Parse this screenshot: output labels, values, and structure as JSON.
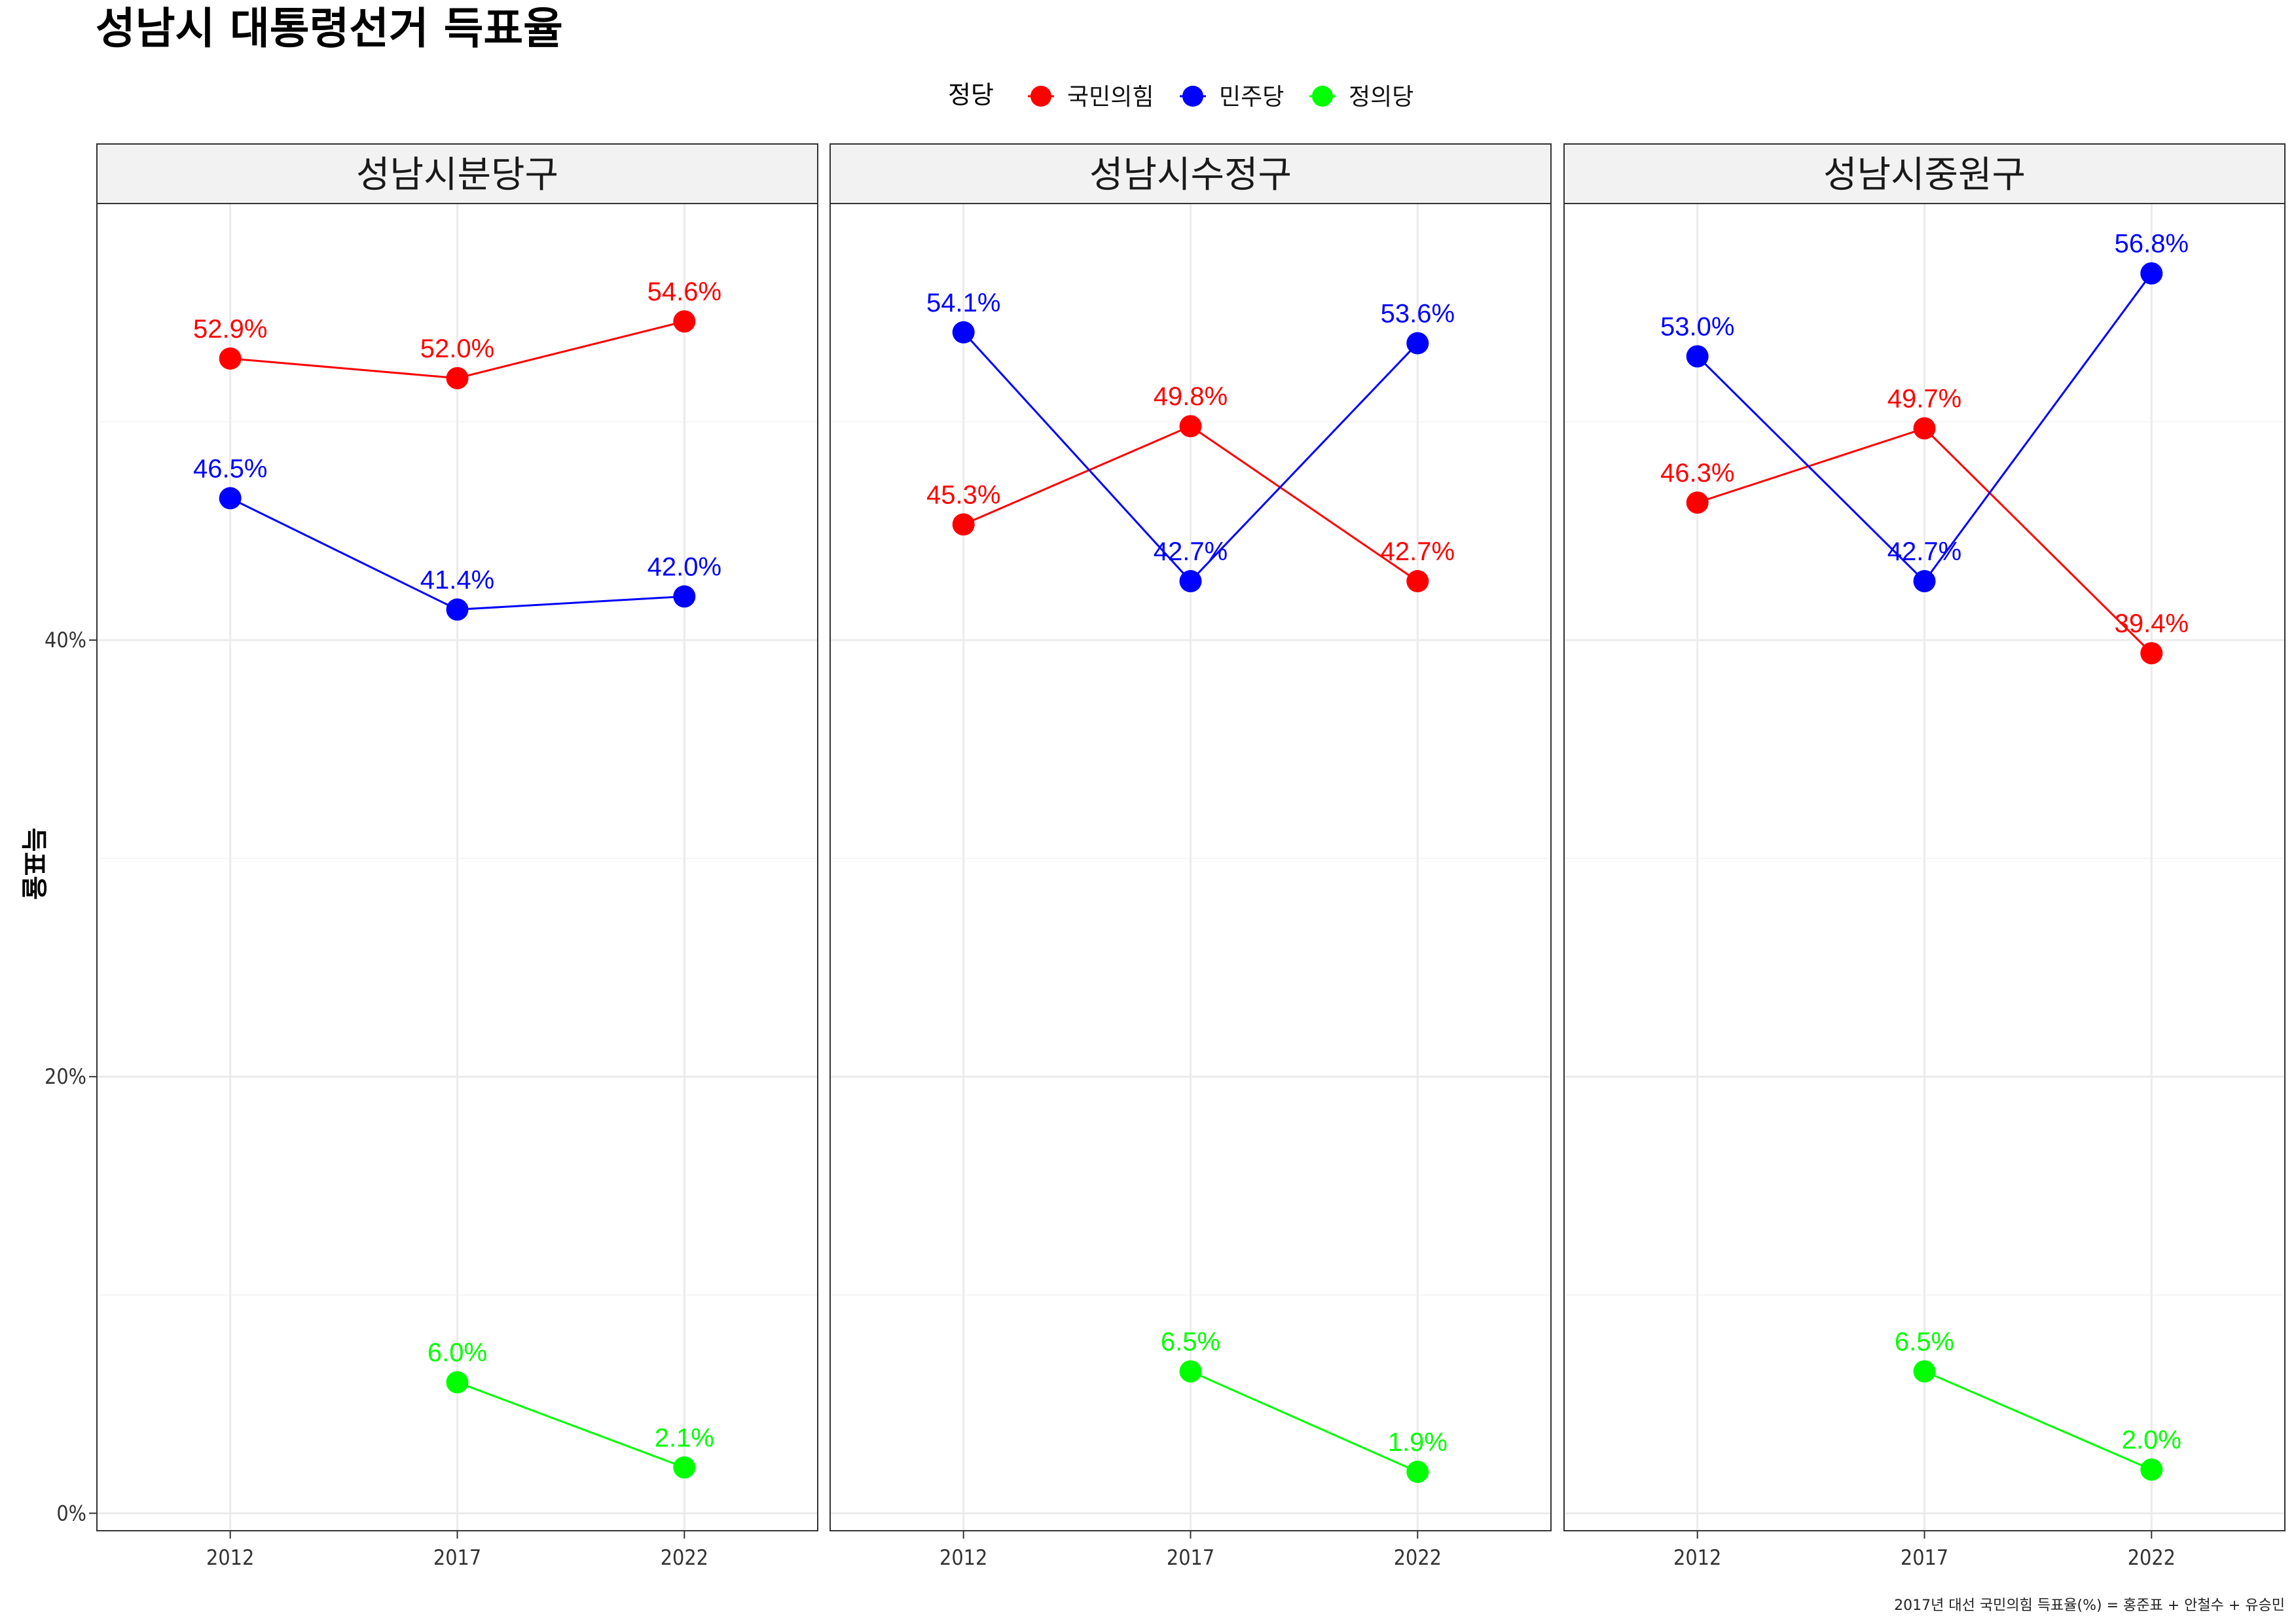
{
  "chart_data": {
    "type": "line",
    "title": "성남시 대통령선거 득표율",
    "ylabel": "득표율",
    "xlabel": "",
    "x": [
      "2012",
      "2017",
      "2022"
    ],
    "ylim": [
      -0.8,
      60
    ],
    "yticks": [
      0,
      20,
      40
    ],
    "ytick_labels": [
      "0%",
      "20%",
      "40%"
    ],
    "grid": true,
    "legend": {
      "title": "정당",
      "position": "top",
      "entries": [
        {
          "name": "국민의힘",
          "color": "#FF0000"
        },
        {
          "name": "민주당",
          "color": "#0000FF"
        },
        {
          "name": "정의당",
          "color": "#00FF00"
        }
      ]
    },
    "facets": [
      {
        "name": "성남시분당구",
        "series": [
          {
            "name": "국민의힘",
            "color": "#FF0000",
            "values": [
              52.9,
              52.0,
              54.6
            ],
            "labels": [
              "52.9%",
              "52.0%",
              "54.6%"
            ]
          },
          {
            "name": "민주당",
            "color": "#0000FF",
            "values": [
              46.5,
              41.4,
              42.0
            ],
            "labels": [
              "46.5%",
              "41.4%",
              "42.0%"
            ]
          },
          {
            "name": "정의당",
            "color": "#00FF00",
            "values": [
              null,
              6.0,
              2.1
            ],
            "labels": [
              null,
              "6.0%",
              "2.1%"
            ]
          }
        ]
      },
      {
        "name": "성남시수정구",
        "series": [
          {
            "name": "국민의힘",
            "color": "#FF0000",
            "values": [
              45.3,
              49.8,
              42.7
            ],
            "labels": [
              "45.3%",
              "49.8%",
              "42.7%"
            ]
          },
          {
            "name": "민주당",
            "color": "#0000FF",
            "values": [
              54.1,
              42.7,
              53.6
            ],
            "labels": [
              "54.1%",
              "42.7%",
              "53.6%"
            ]
          },
          {
            "name": "정의당",
            "color": "#00FF00",
            "values": [
              null,
              6.5,
              1.9
            ],
            "labels": [
              null,
              "6.5%",
              "1.9%"
            ]
          }
        ]
      },
      {
        "name": "성남시중원구",
        "series": [
          {
            "name": "국민의힘",
            "color": "#FF0000",
            "values": [
              46.3,
              49.7,
              39.4
            ],
            "labels": [
              "46.3%",
              "49.7%",
              "39.4%"
            ]
          },
          {
            "name": "민주당",
            "color": "#0000FF",
            "values": [
              53.0,
              42.7,
              56.8
            ],
            "labels": [
              "53.0%",
              "42.7%",
              "56.8%"
            ]
          },
          {
            "name": "정의당",
            "color": "#00FF00",
            "values": [
              null,
              6.5,
              2.0
            ],
            "labels": [
              null,
              "6.5%",
              "2.0%"
            ]
          }
        ]
      }
    ],
    "caption": "2017년 대선 국민의힘 득표율(%) = 홍준표 + 안철수 + 유승민"
  }
}
